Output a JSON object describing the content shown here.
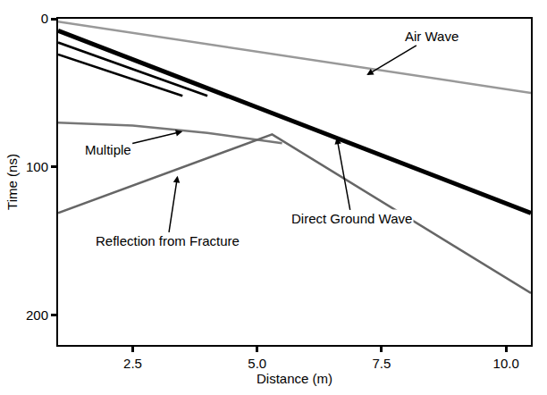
{
  "chart_data": {
    "type": "line",
    "x_label": "Distance (m)",
    "y_label": "Time (ns)",
    "xlim": [
      1.0,
      10.5
    ],
    "ylim": [
      220,
      0
    ],
    "xticks": [
      2.5,
      {
        "value": 5,
        "label": "5.0"
      },
      7.5,
      {
        "value": 10,
        "label": "10.0"
      }
    ],
    "yticks": [
      0,
      100,
      200
    ],
    "grid": false,
    "series": [
      {
        "color": "#999999",
        "line_style": "solid",
        "x": [
          1.0,
          10.5
        ],
        "values": [
          2,
          50
        ]
      },
      {
        "color": "#000000",
        "line_style": "solid",
        "x": [
          1.0,
          10.5
        ],
        "values": [
          8,
          131
        ]
      },
      {
        "color": "#000000",
        "line_style": "solid",
        "x": [
          1.0,
          4.0
        ],
        "values": [
          16,
          52
        ]
      },
      {
        "color": "#000000",
        "line_style": "solid",
        "x": [
          1.0,
          3.5
        ],
        "values": [
          24,
          52
        ]
      },
      {
        "color": "#777777",
        "line_style": "solid",
        "x": [
          1.0,
          2.5,
          4.0,
          5.5
        ],
        "values": [
          70,
          72,
          77,
          84
        ]
      },
      {
        "color": "#666666",
        "line_style": "solid",
        "x": [
          1.0,
          5.3,
          10.5
        ],
        "values": [
          131,
          78,
          185
        ]
      }
    ],
    "annotations": [
      {
        "text": "Air Wave",
        "x": 7.2,
        "y": 38,
        "text_x": 8.5,
        "text_y": 12
      },
      {
        "text": "Multiple",
        "x": 3.5,
        "y": 76,
        "text_x": 2.0,
        "text_y": 88
      },
      {
        "text": "Direct Ground Wave",
        "x": 6.6,
        "y": 80,
        "text_x": 6.9,
        "text_y": 135
      },
      {
        "text": "Reflection from Fracture",
        "x": 3.4,
        "y": 106,
        "text_x": 3.2,
        "text_y": 150
      }
    ]
  }
}
